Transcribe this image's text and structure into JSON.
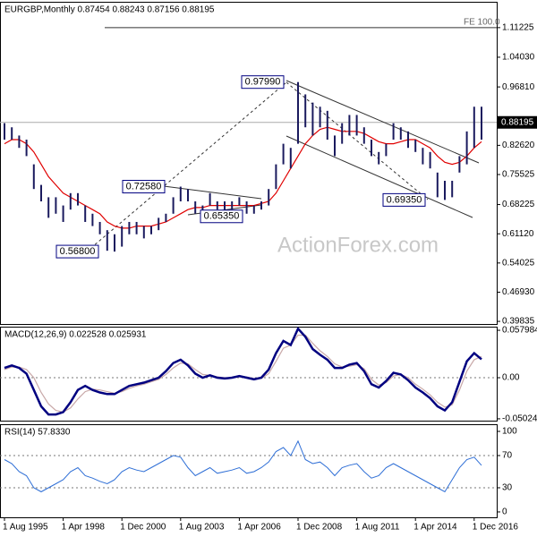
{
  "chart_data": [
    {
      "type": "hl_bars",
      "title": "EURGBP,Monthly 0.87454 0.88243 0.87156 0.88195",
      "categories": [
        "1 Aug 1995",
        null,
        null,
        null,
        null,
        null,
        null,
        null,
        "1 Apr 1998",
        null,
        null,
        null,
        null,
        null,
        null,
        null,
        "1 Dec 2000",
        null,
        null,
        null,
        null,
        null,
        null,
        null,
        "1 Aug 2003",
        null,
        null,
        null,
        null,
        null,
        null,
        null,
        "1 Apr 2006",
        null,
        null,
        null,
        null,
        null,
        null,
        null,
        "1 Dec 2008",
        null,
        null,
        null,
        null,
        null,
        null,
        null,
        "1 Aug 2011",
        null,
        null,
        null,
        null,
        null,
        null,
        null,
        "1 Apr 2014",
        null,
        null,
        null,
        null,
        null,
        null,
        null,
        "1 Dec 2016",
        null
      ],
      "highs": [
        0.88,
        0.87,
        0.85,
        0.84,
        0.78,
        0.73,
        0.7,
        0.7,
        0.68,
        0.71,
        0.71,
        0.68,
        0.66,
        0.64,
        0.62,
        0.61,
        0.63,
        0.64,
        0.64,
        0.63,
        0.63,
        0.65,
        0.66,
        0.7,
        0.7258,
        0.72,
        0.69,
        0.68,
        0.71,
        0.69,
        0.69,
        0.69,
        0.7,
        0.69,
        0.68,
        0.69,
        0.72,
        0.78,
        0.83,
        0.82,
        0.9799,
        0.95,
        0.93,
        0.92,
        0.91,
        0.85,
        0.88,
        0.9,
        0.9,
        0.87,
        0.84,
        0.81,
        0.83,
        0.88,
        0.87,
        0.86,
        0.84,
        0.82,
        0.81,
        0.76,
        0.74,
        0.74,
        0.8,
        0.86,
        0.92,
        0.92
      ],
      "lows": [
        0.84,
        0.84,
        0.82,
        0.8,
        0.72,
        0.69,
        0.65,
        0.66,
        0.64,
        0.67,
        0.68,
        0.64,
        0.63,
        0.61,
        0.57,
        0.568,
        0.58,
        0.61,
        0.61,
        0.6,
        0.61,
        0.62,
        0.64,
        0.66,
        0.69,
        0.69,
        0.66,
        0.6535,
        0.68,
        0.67,
        0.66,
        0.67,
        0.68,
        0.66,
        0.66,
        0.67,
        0.68,
        0.72,
        0.78,
        0.77,
        0.83,
        0.87,
        0.85,
        0.87,
        0.84,
        0.8,
        0.83,
        0.85,
        0.85,
        0.83,
        0.8,
        0.78,
        0.8,
        0.84,
        0.84,
        0.82,
        0.81,
        0.78,
        0.77,
        0.7,
        0.6935,
        0.7,
        0.76,
        0.78,
        0.82,
        0.84
      ],
      "color": "#1a1a5e",
      "ma": {
        "color": "#e00000",
        "values": [
          0.83,
          0.84,
          0.84,
          0.83,
          0.81,
          0.78,
          0.75,
          0.73,
          0.71,
          0.7,
          0.69,
          0.68,
          0.67,
          0.66,
          0.64,
          0.63,
          0.625,
          0.625,
          0.63,
          0.63,
          0.63,
          0.635,
          0.64,
          0.65,
          0.66,
          0.67,
          0.675,
          0.675,
          0.68,
          0.68,
          0.68,
          0.68,
          0.68,
          0.68,
          0.68,
          0.685,
          0.69,
          0.71,
          0.74,
          0.77,
          0.8,
          0.83,
          0.85,
          0.865,
          0.87,
          0.865,
          0.86,
          0.86,
          0.86,
          0.855,
          0.845,
          0.835,
          0.83,
          0.83,
          0.835,
          0.84,
          0.84,
          0.83,
          0.82,
          0.8,
          0.785,
          0.78,
          0.785,
          0.8,
          0.82,
          0.835
        ]
      },
      "ylim": [
        0.392,
        1.175
      ],
      "yticks": [
        {
          "value": 1.11225,
          "label": "1.11225"
        },
        {
          "value": 1.0403,
          "label": "1.04030"
        },
        {
          "value": 0.9681,
          "label": "0.96810"
        },
        {
          "value": 0.8262,
          "label": "0.82620"
        },
        {
          "value": 0.75525,
          "label": "0.75525"
        },
        {
          "value": 0.68225,
          "label": "0.68225"
        },
        {
          "value": 0.6112,
          "label": "0.61120"
        },
        {
          "value": 0.54025,
          "label": "0.54025"
        },
        {
          "value": 0.4693,
          "label": "0.46930"
        },
        {
          "value": 0.39835,
          "label": "0.39835"
        }
      ],
      "current_price": 0.88195,
      "annotations": [
        {
          "value": 0.9799,
          "label": "0.97990"
        },
        {
          "value": 0.7258,
          "label": "0.72580"
        },
        {
          "value": 0.6535,
          "label": "0.65350"
        },
        {
          "value": 0.568,
          "label": "0.56800"
        },
        {
          "value": 0.6935,
          "label": "0.69350"
        }
      ],
      "fe_label": "FE 100.0",
      "watermark": "ActionForex.com"
    },
    {
      "type": "macd",
      "title": "MACD(12,26,9) 0.022528 0.025931",
      "series": [
        {
          "color": "#000080",
          "values": [
            0.012,
            0.015,
            0.012,
            0.005,
            -0.015,
            -0.035,
            -0.045,
            -0.045,
            -0.042,
            -0.03,
            -0.015,
            -0.01,
            -0.015,
            -0.018,
            -0.02,
            -0.02,
            -0.015,
            -0.01,
            -0.008,
            -0.006,
            -0.003,
            0,
            0.008,
            0.018,
            0.022,
            0.015,
            0.005,
            0,
            0.003,
            0,
            -0.001,
            0,
            0.002,
            0,
            -0.002,
            0,
            0.01,
            0.03,
            0.045,
            0.04,
            0.06,
            0.05,
            0.035,
            0.028,
            0.022,
            0.012,
            0.012,
            0.016,
            0.018,
            0.008,
            -0.008,
            -0.012,
            -0.004,
            0.006,
            0.004,
            -0.003,
            -0.012,
            -0.018,
            -0.025,
            -0.035,
            -0.04,
            -0.03,
            -0.005,
            0.02,
            0.03,
            0.022528
          ]
        },
        {
          "color": "#c8a8a8",
          "values": [
            0.01,
            0.013,
            0.013,
            0.01,
            0,
            -0.018,
            -0.032,
            -0.04,
            -0.042,
            -0.037,
            -0.026,
            -0.017,
            -0.014,
            -0.015,
            -0.017,
            -0.019,
            -0.017,
            -0.013,
            -0.01,
            -0.008,
            -0.005,
            -0.002,
            0.004,
            0.012,
            0.018,
            0.017,
            0.01,
            0.004,
            0.003,
            0.001,
            0,
            0,
            0.001,
            0.001,
            -0.001,
            -0.001,
            0.005,
            0.02,
            0.036,
            0.04,
            0.052,
            0.052,
            0.042,
            0.033,
            0.026,
            0.017,
            0.013,
            0.014,
            0.016,
            0.011,
            -0.002,
            -0.009,
            -0.006,
            0.002,
            0.004,
            0,
            -0.008,
            -0.014,
            -0.021,
            -0.03,
            -0.036,
            -0.033,
            -0.015,
            0.008,
            0.022,
            0.025931
          ]
        }
      ],
      "ylim": [
        -0.0525,
        0.0624
      ],
      "yticks": [
        -0.050241,
        {
          "value": 0,
          "label": "0.00"
        },
        0.057984
      ]
    },
    {
      "type": "rsi",
      "title": "RSI(14) 57.8330",
      "color": "#2f6fd6",
      "values": [
        65,
        60,
        50,
        45,
        30,
        25,
        30,
        35,
        40,
        50,
        55,
        45,
        42,
        38,
        35,
        40,
        50,
        55,
        52,
        50,
        55,
        60,
        65,
        70,
        68,
        55,
        45,
        50,
        55,
        48,
        50,
        52,
        55,
        48,
        50,
        55,
        62,
        75,
        80,
        70,
        88,
        65,
        60,
        62,
        55,
        45,
        55,
        58,
        60,
        50,
        42,
        45,
        55,
        60,
        55,
        50,
        45,
        40,
        35,
        30,
        25,
        40,
        55,
        65,
        68,
        57.833
      ],
      "ylim": [
        -6.7,
        108.9
      ],
      "yticks": [
        0,
        30,
        70,
        100
      ]
    }
  ]
}
